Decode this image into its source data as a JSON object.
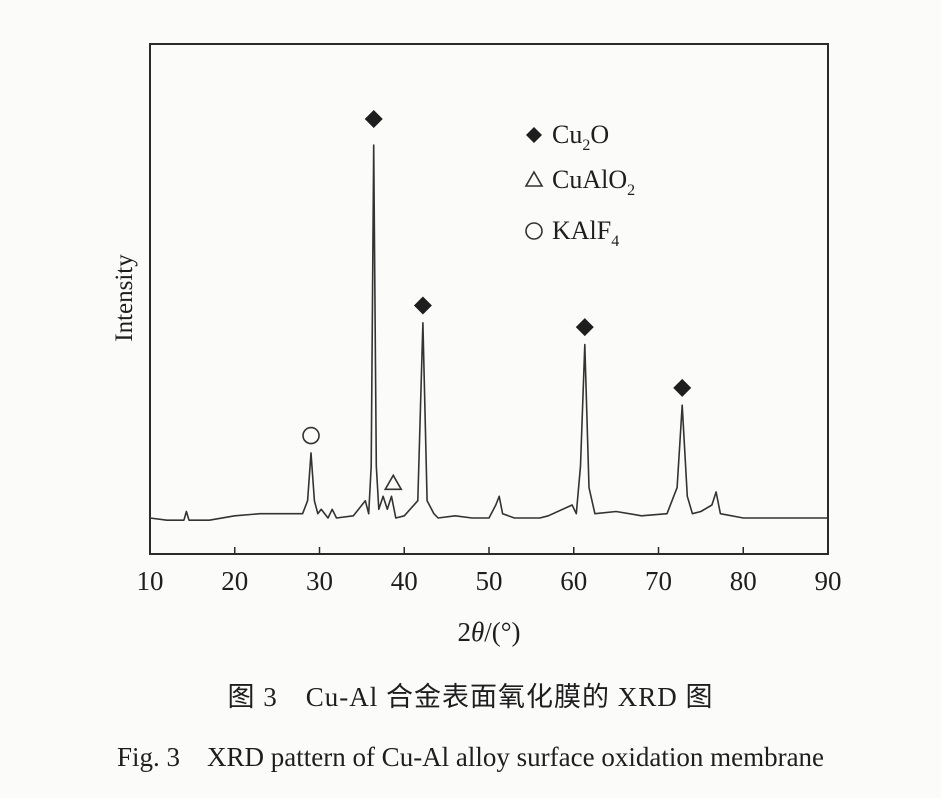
{
  "chart_data": {
    "type": "line",
    "xlabel_prefix": "2",
    "xlabel_symbol": "θ",
    "xlabel_suffix": "/(°)",
    "ylabel": "Intensity",
    "xlim": [
      10,
      90
    ],
    "ylim": [
      0,
      1
    ],
    "xticks": [
      "10",
      "20",
      "30",
      "40",
      "50",
      "60",
      "70",
      "80",
      "90"
    ],
    "grid": false,
    "legend_position": "top-right",
    "legend": [
      {
        "marker": "filled-diamond",
        "base": "Cu",
        "sub": "2",
        "rest": "O"
      },
      {
        "marker": "open-triangle",
        "base": "CuAlO",
        "sub": "2",
        "rest": ""
      },
      {
        "marker": "open-circle",
        "base": "KAlF",
        "sub": "4",
        "rest": ""
      }
    ],
    "series": [
      {
        "points": [
          [
            10,
            0.08
          ],
          [
            12,
            0.075
          ],
          [
            14,
            0.075
          ],
          [
            14.3,
            0.095
          ],
          [
            14.6,
            0.075
          ],
          [
            17,
            0.075
          ],
          [
            20,
            0.085
          ],
          [
            23,
            0.09
          ],
          [
            26,
            0.09
          ],
          [
            28,
            0.09
          ],
          [
            28.6,
            0.12
          ],
          [
            29,
            0.23
          ],
          [
            29.4,
            0.12
          ],
          [
            29.8,
            0.09
          ],
          [
            30.2,
            0.1
          ],
          [
            31,
            0.08
          ],
          [
            31.5,
            0.1
          ],
          [
            32,
            0.08
          ],
          [
            34,
            0.085
          ],
          [
            35.4,
            0.12
          ],
          [
            35.8,
            0.09
          ],
          [
            36.1,
            0.2
          ],
          [
            36.4,
            0.94
          ],
          [
            36.7,
            0.2
          ],
          [
            37,
            0.1
          ],
          [
            37.5,
            0.13
          ],
          [
            38,
            0.1
          ],
          [
            38.5,
            0.13
          ],
          [
            39,
            0.08
          ],
          [
            40,
            0.085
          ],
          [
            41.6,
            0.12
          ],
          [
            42.2,
            0.53
          ],
          [
            42.7,
            0.12
          ],
          [
            43.5,
            0.09
          ],
          [
            44,
            0.08
          ],
          [
            46,
            0.085
          ],
          [
            48,
            0.08
          ],
          [
            50,
            0.08
          ],
          [
            50.8,
            0.11
          ],
          [
            51.2,
            0.13
          ],
          [
            51.6,
            0.09
          ],
          [
            53,
            0.08
          ],
          [
            56,
            0.08
          ],
          [
            57,
            0.085
          ],
          [
            59.8,
            0.11
          ],
          [
            60.3,
            0.09
          ],
          [
            60.8,
            0.2
          ],
          [
            61.3,
            0.48
          ],
          [
            61.8,
            0.15
          ],
          [
            62.5,
            0.09
          ],
          [
            65,
            0.095
          ],
          [
            68,
            0.085
          ],
          [
            71,
            0.09
          ],
          [
            72.2,
            0.15
          ],
          [
            72.8,
            0.34
          ],
          [
            73.4,
            0.13
          ],
          [
            74,
            0.09
          ],
          [
            75,
            0.095
          ],
          [
            76.3,
            0.11
          ],
          [
            76.8,
            0.14
          ],
          [
            77.3,
            0.09
          ],
          [
            80,
            0.08
          ],
          [
            85,
            0.08
          ],
          [
            90,
            0.08
          ]
        ]
      }
    ],
    "annotations": [
      {
        "marker": "filled-diamond",
        "x": 36.4,
        "y": 1.0
      },
      {
        "marker": "filled-diamond",
        "x": 42.2,
        "y": 0.57
      },
      {
        "marker": "filled-diamond",
        "x": 61.3,
        "y": 0.52
      },
      {
        "marker": "filled-diamond",
        "x": 72.8,
        "y": 0.38
      },
      {
        "marker": "open-circle",
        "x": 29.0,
        "y": 0.27
      },
      {
        "marker": "open-triangle",
        "x": 38.7,
        "y": 0.16
      }
    ]
  },
  "captions": {
    "zh": "图 3　Cu-Al 合金表面氧化膜的 XRD 图",
    "en": "Fig. 3　XRD pattern of Cu-Al alloy surface oxidation membrane"
  }
}
